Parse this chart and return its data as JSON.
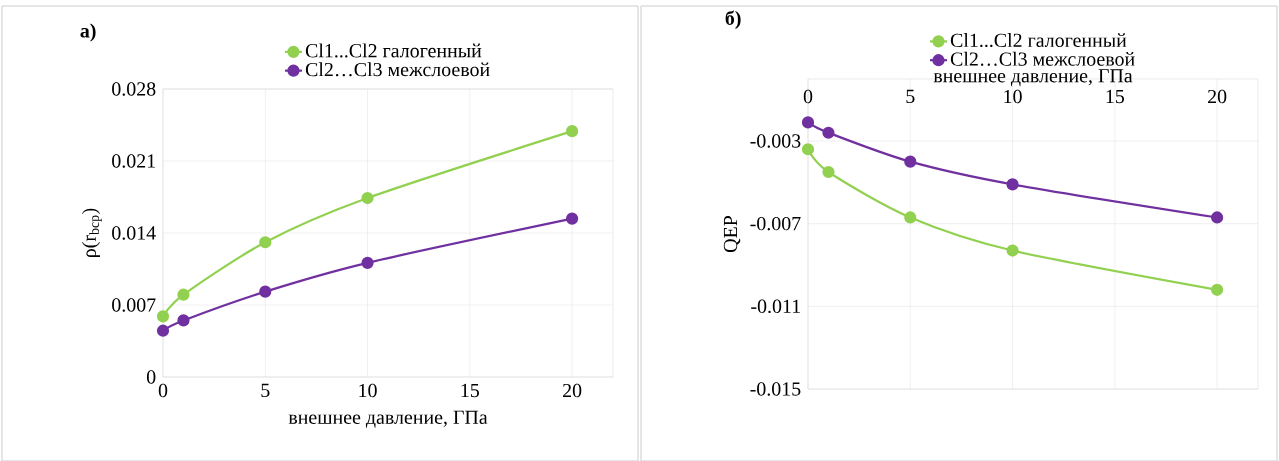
{
  "chart_data": [
    {
      "type": "line",
      "title": "а)",
      "xlabel": "внешнее давление, ГПа",
      "ylabel": "ρ(r$_{bcp}$)",
      "x": [
        0,
        1,
        5,
        10,
        20
      ],
      "series": [
        {
          "name": "Cl1...Cl2 галогенный",
          "color": "#92d050",
          "values": [
            0.0059,
            0.008,
            0.0131,
            0.0174,
            0.0239
          ]
        },
        {
          "name": "Cl2…Cl3  межслоевой",
          "color": "#7030a0",
          "values": [
            0.0045,
            0.0055,
            0.0083,
            0.0111,
            0.0154
          ]
        }
      ],
      "xlim": [
        0,
        22
      ],
      "xticks": [
        0,
        5,
        10,
        15,
        20
      ],
      "ylim": [
        0,
        0.028
      ],
      "yticks": [
        0,
        0.007,
        0.014,
        0.021,
        0.028
      ],
      "grid": true,
      "legend": "top",
      "marker": "circle",
      "line_style": "solid"
    },
    {
      "type": "line",
      "title": "б)",
      "xlabel": "внешнее давление, ГПа",
      "ylabel": "QEP",
      "x": [
        0,
        1,
        5,
        10,
        20
      ],
      "series": [
        {
          "name": "Cl1...Cl2 галогенный",
          "color": "#92d050",
          "values": [
            -0.0034,
            -0.0045,
            -0.0067,
            -0.0083,
            -0.0102
          ]
        },
        {
          "name": "Cl2…Cl3  межслоевой",
          "color": "#7030a0",
          "values": [
            -0.0021,
            -0.0026,
            -0.004,
            -0.0051,
            -0.0067
          ]
        }
      ],
      "xlim": [
        0,
        22
      ],
      "xticks": [
        0,
        5,
        10,
        15,
        20
      ],
      "ylim": [
        -0.015,
        0
      ],
      "yticks": [
        -0.015,
        -0.011,
        -0.007,
        -0.003
      ],
      "grid": true,
      "legend": "top",
      "marker": "circle",
      "line_style": "solid"
    }
  ]
}
